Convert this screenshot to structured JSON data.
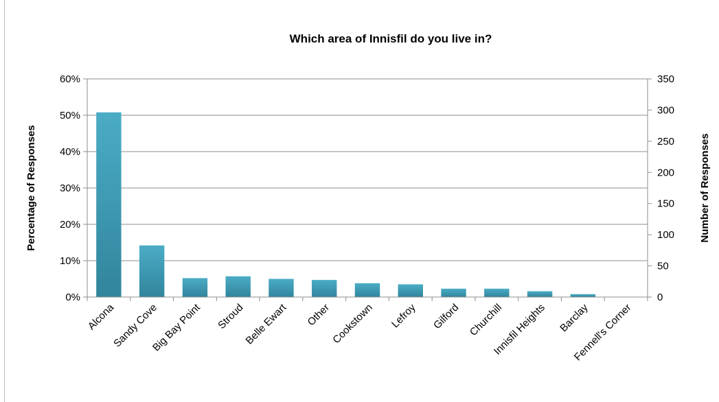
{
  "chart_data": {
    "type": "bar",
    "title": "Which area of Innisfil do you live in?",
    "ylabel": "Percentage of Responses",
    "y2label": "Number of Responses",
    "ylim": [
      0,
      0.6
    ],
    "y2lim": [
      0,
      350
    ],
    "yticks": [
      "0%",
      "10%",
      "20%",
      "30%",
      "40%",
      "50%",
      "60%"
    ],
    "y2ticks": [
      "0",
      "50",
      "100",
      "150",
      "200",
      "250",
      "300",
      "350"
    ],
    "grid": true,
    "legend": "none",
    "categories": [
      "Alcona",
      "Sandy Cove",
      "Big Bay Point",
      "Stroud",
      "Belle Ewart",
      "Other",
      "Cookstown",
      "Lefroy",
      "Gilford",
      "Churchill",
      "Innisfil Heights",
      "Barclay",
      "Fennell's Corner"
    ],
    "values": [
      0.508,
      0.142,
      0.052,
      0.057,
      0.05,
      0.047,
      0.038,
      0.035,
      0.023,
      0.023,
      0.016,
      0.008,
      0.0
    ],
    "bar_color_top": "#4bacc6",
    "bar_color_bottom": "#31859c"
  }
}
